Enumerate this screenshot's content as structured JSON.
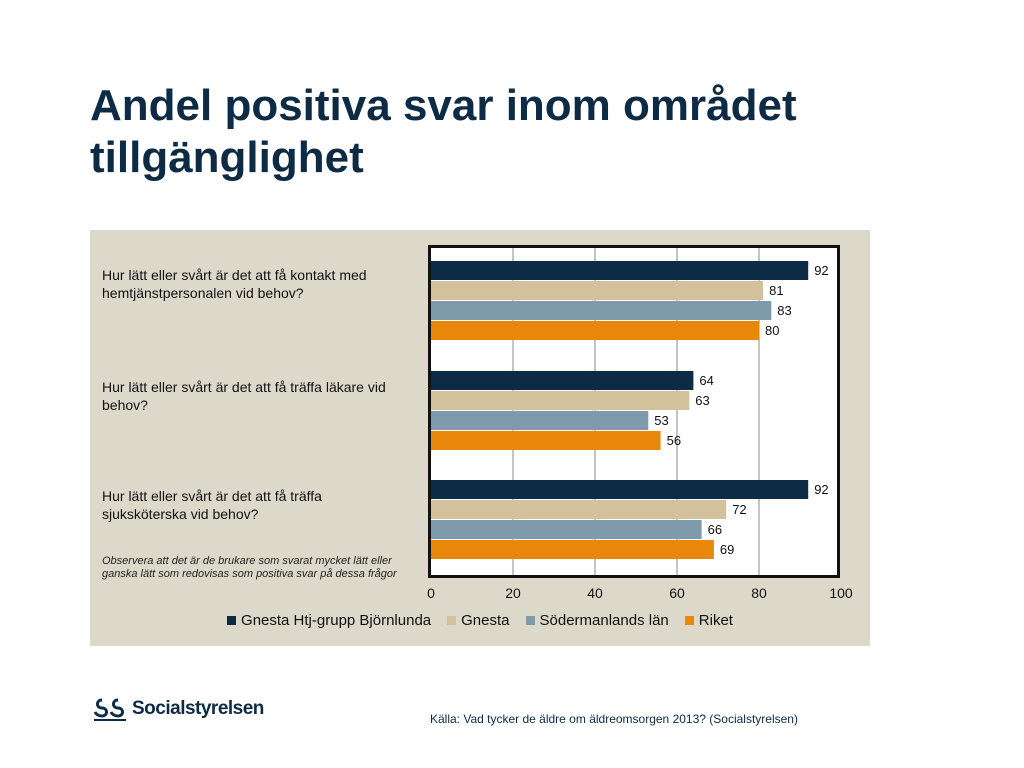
{
  "slide": {
    "title": "Andel positiva svar inom området tillgänglighet",
    "note": "Observera att det är de brukare som svarat mycket lätt eller ganska lätt som redovisas som positiva svar på dessa frågor",
    "source": "Källa: Vad tycker de äldre om äldreomsorgen 2013? (Socialstyrelsen)",
    "logo_text": "Socialstyrelsen"
  },
  "colors": {
    "title": "#0d2b45",
    "panel": "#dcd8ca",
    "series": [
      "#0d2b45",
      "#d3c19b",
      "#7f9aaa",
      "#e8870a"
    ]
  },
  "chart_data": {
    "type": "bar",
    "orientation": "horizontal",
    "categories": [
      "Hur lätt eller svårt är det att få kontakt med hemtjänstpersonalen vid behov?",
      "Hur lätt eller svårt är det att få träffa läkare vid behov?",
      "Hur lätt eller svårt är det att få träffa sjuksköterska vid behov?"
    ],
    "series": [
      {
        "name": "Gnesta Htj-grupp Björnlunda",
        "values": [
          92,
          64,
          92
        ]
      },
      {
        "name": "Gnesta",
        "values": [
          81,
          63,
          72
        ]
      },
      {
        "name": "Södermanlands län",
        "values": [
          83,
          53,
          66
        ]
      },
      {
        "name": "Riket",
        "values": [
          80,
          56,
          69
        ]
      }
    ],
    "xlim": [
      0,
      100
    ],
    "xticks": [
      0,
      20,
      40,
      60,
      80,
      100
    ],
    "grid": true,
    "data_labels": true,
    "legend_position": "bottom"
  }
}
